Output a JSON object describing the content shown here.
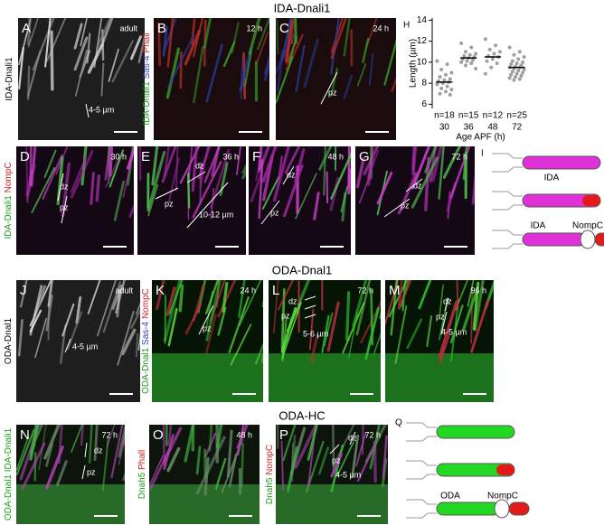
{
  "figure": {
    "titles": [
      "IDA-Dnali1",
      "ODA-Dnal1",
      "ODA-HC"
    ],
    "panels": [
      {
        "letter": "A",
        "time": "adult",
        "side_label": [
          "IDA-Dnali1"
        ],
        "labels": [
          "4-5 µm"
        ]
      },
      {
        "letter": "B",
        "time": "12 h",
        "side_label": [
          "IDA-Dnali1",
          "Sas-4",
          "Phall"
        ],
        "labels": []
      },
      {
        "letter": "C",
        "time": "24 h",
        "side_label": [],
        "labels": [
          "pz"
        ]
      },
      {
        "letter": "D",
        "time": "30 h",
        "side_label": [
          "IDA-Dnali1",
          "NompC"
        ],
        "labels": [
          "dz",
          "pz"
        ]
      },
      {
        "letter": "E",
        "time": "36 h",
        "side_label": [],
        "labels": [
          "dz",
          "pz",
          "10-12 µm"
        ]
      },
      {
        "letter": "F",
        "time": "48 h",
        "side_label": [],
        "labels": [
          "dz",
          "pz"
        ]
      },
      {
        "letter": "G",
        "time": "72 h",
        "side_label": [],
        "labels": [
          "dz",
          "pz"
        ]
      },
      {
        "letter": "J",
        "time": "adult",
        "side_label": [
          "ODA-Dnal1"
        ],
        "labels": [
          "4-5 µm"
        ]
      },
      {
        "letter": "K",
        "time": "24 h",
        "side_label": [
          "ODA-Dnal1",
          "Sas-4",
          "NompC"
        ],
        "labels": [
          "pz"
        ]
      },
      {
        "letter": "L",
        "time": "72 h",
        "side_label": [],
        "labels": [
          "dz",
          "pz",
          "5-6 µm"
        ]
      },
      {
        "letter": "M",
        "time": "96 h",
        "side_label": [],
        "labels": [
          "dz",
          "pz",
          "4-5 µm"
        ]
      },
      {
        "letter": "N",
        "time": "72 h",
        "side_label": [
          "ODA-Dnal1",
          "IDA-Dnali1"
        ],
        "labels": [
          "dz",
          "pz"
        ]
      },
      {
        "letter": "O",
        "time": "48 h",
        "side_label": [
          "Dnah5",
          "Phall"
        ],
        "labels": []
      },
      {
        "letter": "P",
        "time": "72 h",
        "side_label": [
          "Dnah5",
          "NompC"
        ],
        "labels": [
          "dz",
          "pz",
          "4-5 µm"
        ]
      }
    ],
    "diagrams": [
      {
        "letter": "I",
        "labels": [
          "IDA",
          "IDA",
          "NompC"
        ]
      },
      {
        "letter": "Q",
        "labels": [
          "ODA",
          "NompC"
        ]
      }
    ]
  },
  "chart_data": {
    "type": "strip",
    "panel_letter": "H",
    "ylabel": "Length (µm)",
    "xlabel": "Age APF (h)",
    "categories": [
      "30",
      "36",
      "48",
      "72"
    ],
    "n_labels": [
      "n=18",
      "n=15",
      "n=12",
      "n=25"
    ],
    "values": [
      [
        10.1,
        9.8,
        9.3,
        9.0,
        8.8,
        8.6,
        8.4,
        8.3,
        8.2,
        8.1,
        8.0,
        7.9,
        7.7,
        7.5,
        7.4,
        7.2,
        7.0,
        6.9
      ],
      [
        11.8,
        11.4,
        11.0,
        10.8,
        10.7,
        10.6,
        10.5,
        10.4,
        10.3,
        10.2,
        10.1,
        10.0,
        9.9,
        9.7,
        9.4
      ],
      [
        12.2,
        11.6,
        11.2,
        11.0,
        10.8,
        10.6,
        10.5,
        10.3,
        10.1,
        9.9,
        9.5,
        8.9
      ],
      [
        11.4,
        11.0,
        10.7,
        10.5,
        10.3,
        10.1,
        10.0,
        9.9,
        9.8,
        9.7,
        9.6,
        9.5,
        9.5,
        9.4,
        9.3,
        9.2,
        9.1,
        9.0,
        8.9,
        8.8,
        8.7,
        8.6,
        8.5,
        8.4,
        8.3
      ]
    ],
    "medians": [
      8.1,
      10.4,
      10.5,
      9.5
    ],
    "color": "#a0a0a0",
    "ylim": [
      5.6,
      14.2
    ],
    "yticks": [
      6,
      8,
      10,
      12,
      14
    ]
  }
}
